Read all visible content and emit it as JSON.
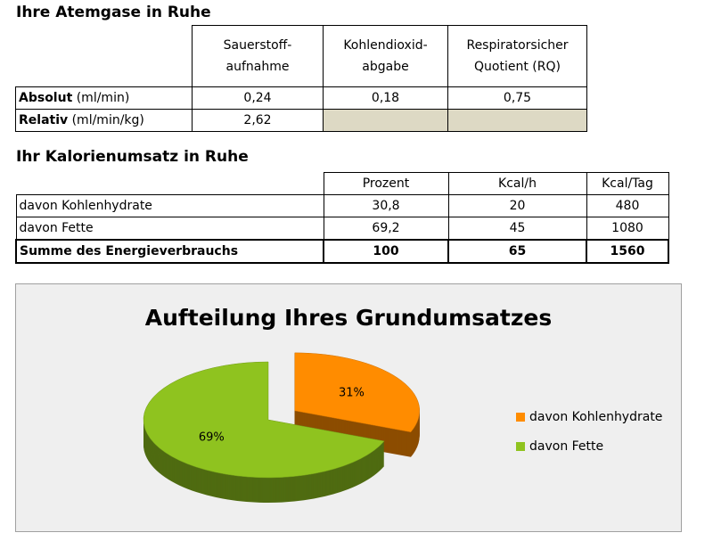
{
  "table1": {
    "title": "Ihre Atemgase in Ruhe",
    "header": [
      [
        "Sauerstoff-",
        "aufnahme"
      ],
      [
        "Kohlendioxid-",
        "abgabe"
      ],
      [
        "Respiratorsicher",
        "Quotient (RQ)"
      ]
    ],
    "rows": [
      {
        "label": {
          "bold": "Absolut",
          "unit": "(ml/min)"
        },
        "cells": [
          "0,24",
          "0,18",
          "0,75"
        ]
      },
      {
        "label": {
          "bold": "Relativ",
          "unit": "(ml/min/kg)"
        },
        "cells": [
          "2,62"
        ]
      }
    ]
  },
  "table2": {
    "title": "Ihr Kalorienumsatz in Ruhe",
    "header": [
      "Prozent",
      "Kcal/h",
      "Kcal/Tag"
    ],
    "rows": [
      {
        "label": "davon Kohlenhydrate",
        "cells": [
          "30,8",
          "20",
          "480"
        ]
      },
      {
        "label": "davon Fette",
        "cells": [
          "69,2",
          "45",
          "1080"
        ]
      },
      {
        "label": "Summe des Energieverbrauchs",
        "cells": [
          "100",
          "65",
          "1560"
        ]
      }
    ]
  },
  "chart_data": {
    "type": "pie",
    "title": "Aufteilung Ihres Grundumsatzes",
    "categories": [
      "davon Kohlenhydrate",
      "davon Fette"
    ],
    "values": [
      31,
      69
    ],
    "value_labels": [
      "31%",
      "69%"
    ],
    "colors": [
      "#ff8c00",
      "#8fc31f"
    ],
    "legend": "right"
  }
}
